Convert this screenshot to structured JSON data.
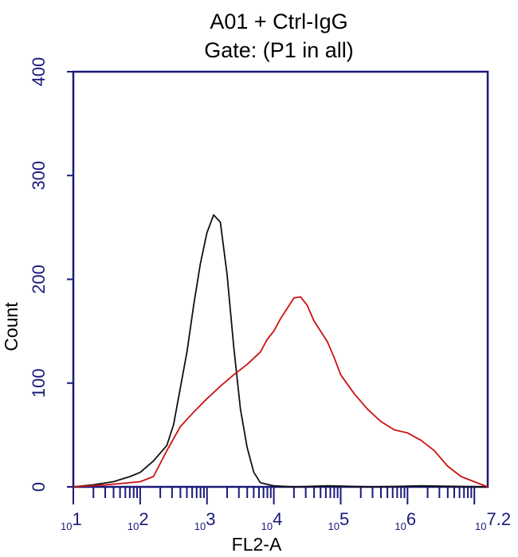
{
  "chart_data": {
    "type": "line",
    "title": "A01 + Ctrl-IgG",
    "subtitle": "Gate: (P1 in all)",
    "xlabel": "FL2-A",
    "ylabel": "Count",
    "x_scale": "log",
    "xlim": [
      1,
      7.2
    ],
    "ylim": [
      0,
      400
    ],
    "yticks": [
      "0",
      "100",
      "200",
      "300",
      "400"
    ],
    "xticks": [
      {
        "base": "10",
        "exp": "1"
      },
      {
        "base": "10",
        "exp": "2"
      },
      {
        "base": "10",
        "exp": "3"
      },
      {
        "base": "10",
        "exp": "4"
      },
      {
        "base": "10",
        "exp": "5"
      },
      {
        "base": "10",
        "exp": "6"
      },
      {
        "base": "10",
        "exp": "7.2"
      }
    ],
    "series": [
      {
        "color": "#111111",
        "x": [
          1.0,
          1.3,
          1.6,
          1.85,
          2.0,
          2.2,
          2.4,
          2.5,
          2.6,
          2.7,
          2.8,
          2.9,
          3.0,
          3.1,
          3.2,
          3.3,
          3.4,
          3.5,
          3.6,
          3.7,
          3.8,
          4.0,
          4.3,
          4.8,
          5.5,
          6.2,
          7.2
        ],
        "y": [
          0,
          2,
          5,
          10,
          14,
          25,
          40,
          60,
          95,
          130,
          175,
          215,
          245,
          262,
          255,
          205,
          135,
          75,
          38,
          14,
          4,
          1,
          0,
          1,
          0,
          1,
          0
        ]
      },
      {
        "color": "#cc1111",
        "x": [
          1.0,
          1.5,
          2.0,
          2.2,
          2.4,
          2.6,
          2.8,
          3.0,
          3.2,
          3.4,
          3.6,
          3.8,
          3.9,
          4.0,
          4.1,
          4.2,
          4.3,
          4.4,
          4.5,
          4.6,
          4.7,
          4.8,
          4.9,
          5.0,
          5.2,
          5.4,
          5.6,
          5.8,
          6.0,
          6.2,
          6.4,
          6.6,
          6.8,
          7.0,
          7.2
        ],
        "y": [
          0,
          2,
          5,
          10,
          35,
          58,
          72,
          85,
          97,
          108,
          118,
          130,
          142,
          150,
          162,
          172,
          182,
          183,
          175,
          160,
          150,
          140,
          125,
          108,
          90,
          75,
          63,
          55,
          52,
          45,
          35,
          20,
          10,
          5,
          0
        ]
      }
    ]
  }
}
